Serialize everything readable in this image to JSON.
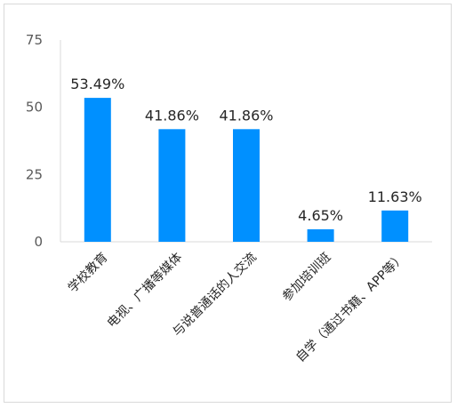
{
  "chart_data": {
    "type": "bar",
    "categories": [
      "学校教育",
      "电视、广播等媒体",
      "与说普通话的人交流",
      "参加培训班",
      "自学（通过书籍、APP等）"
    ],
    "values": [
      53.49,
      41.86,
      41.86,
      4.65,
      11.63
    ],
    "data_labels": [
      "53.49%",
      "41.86%",
      "41.86%",
      "4.65%",
      "11.63%"
    ],
    "yticks": [
      "0",
      "25",
      "50",
      "75"
    ],
    "ylim": [
      0,
      75
    ],
    "bar_color": "#0090ff",
    "grid": false,
    "legend": "none"
  }
}
